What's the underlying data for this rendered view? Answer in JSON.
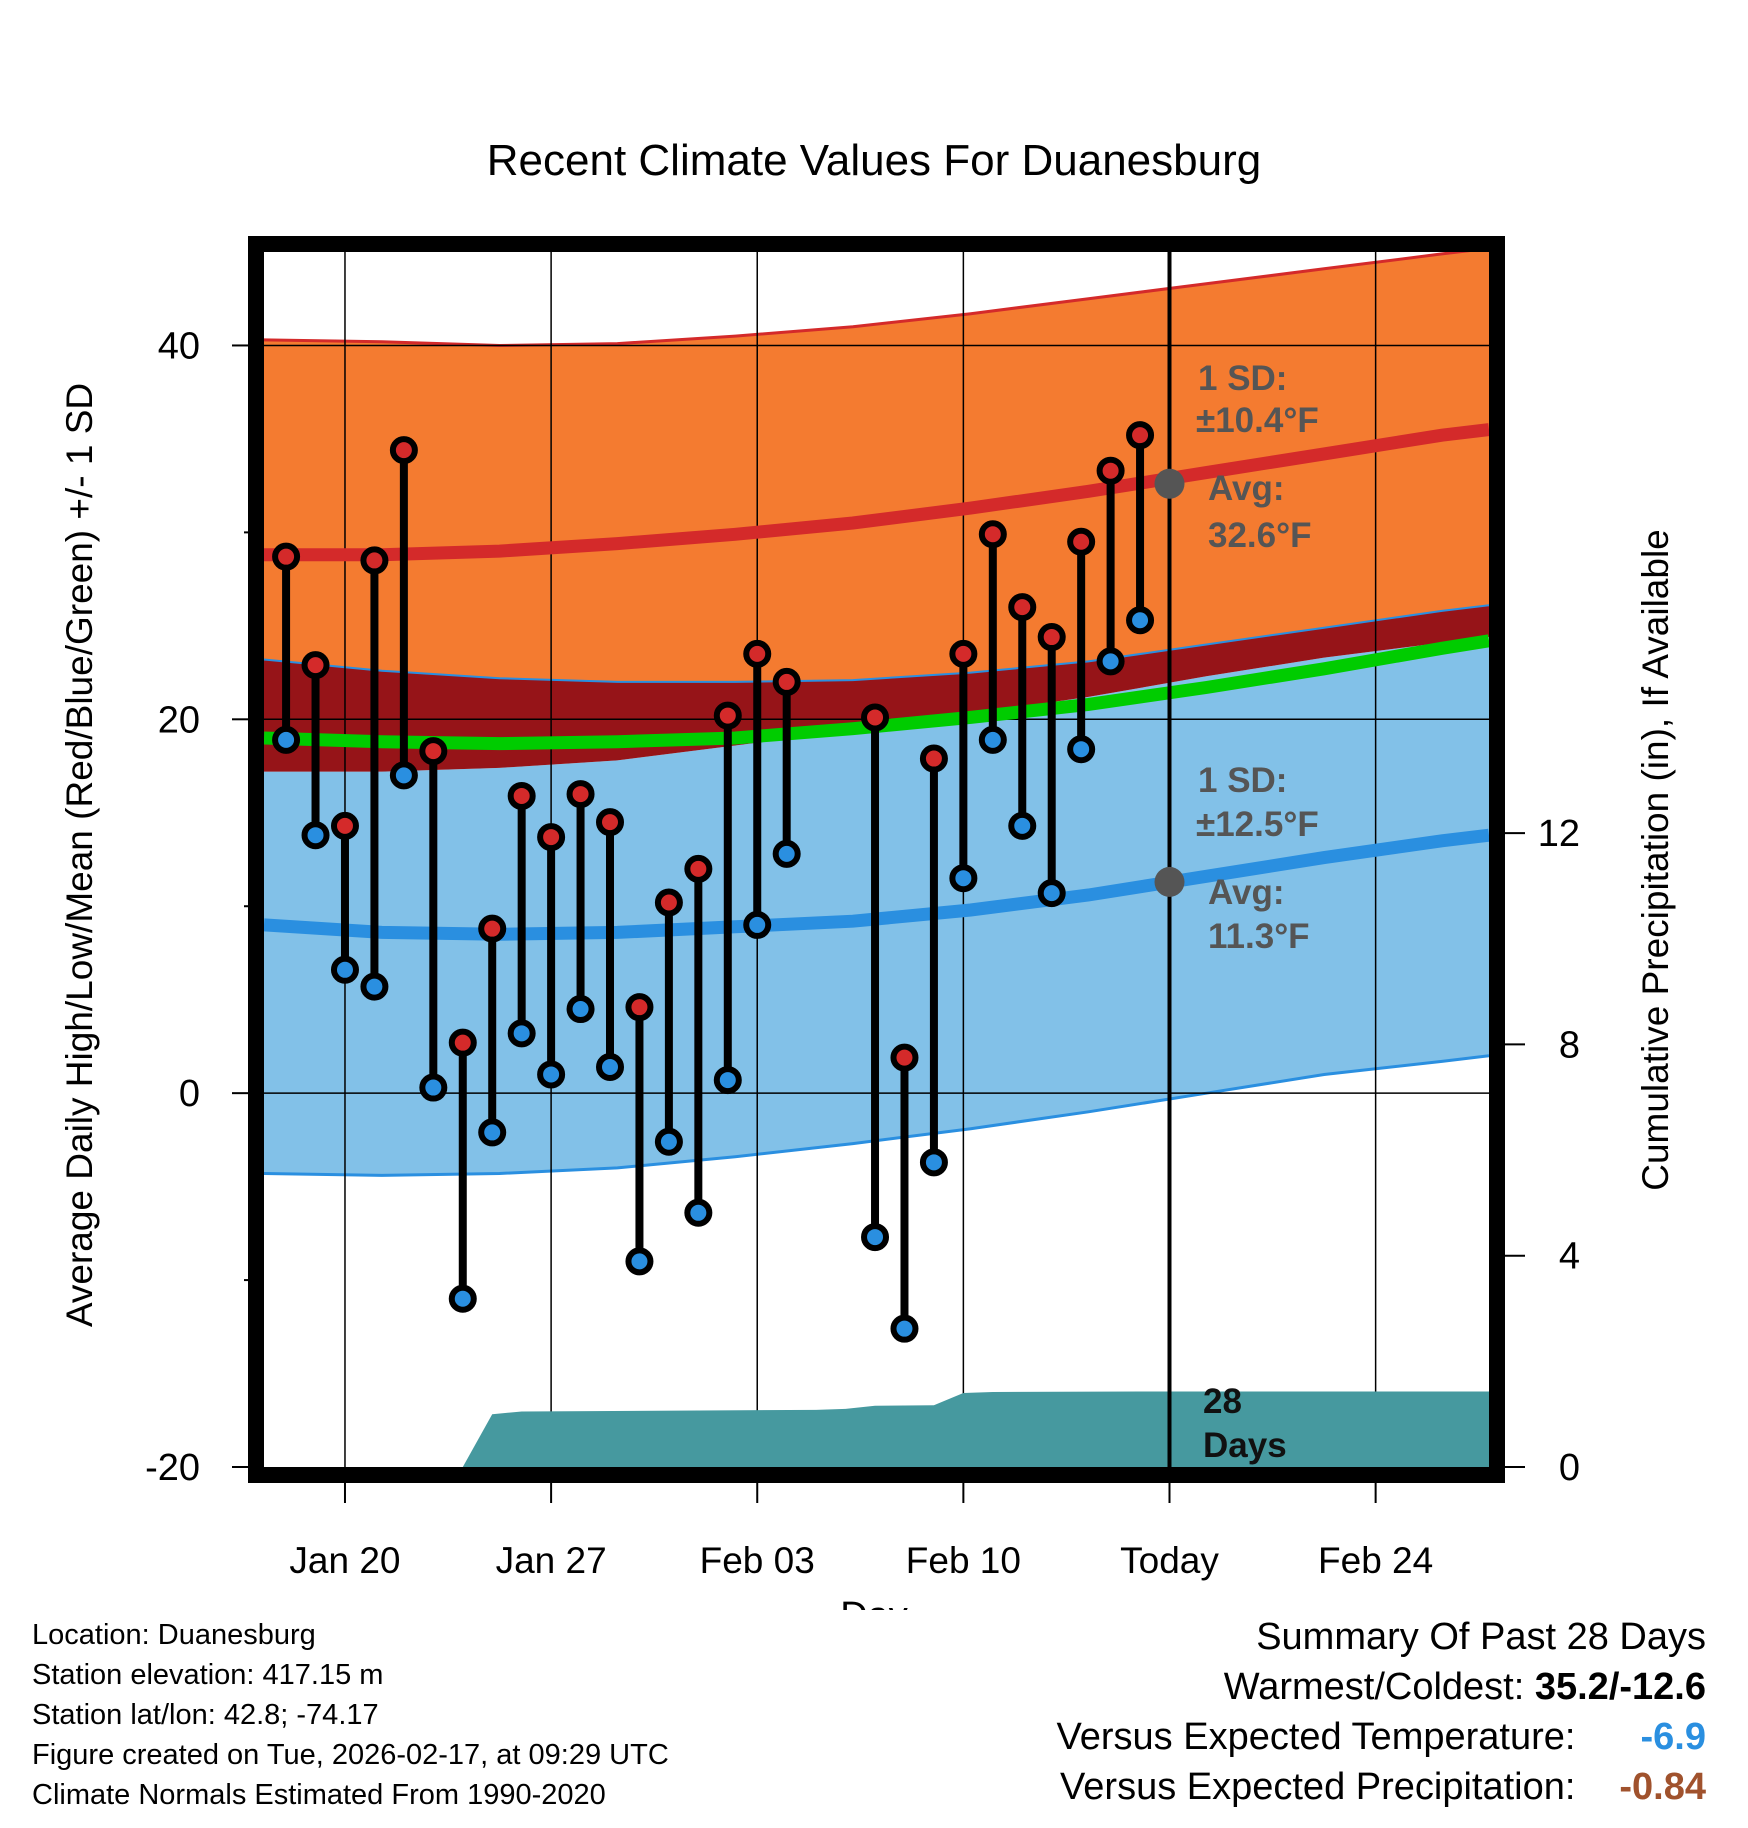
{
  "chart_data": {
    "type": "line",
    "title": "Recent Climate Values For Duanesburg",
    "xlabel": "Day",
    "ylabel": "Average Daily High/Low/Mean (Red/Blue/Green) +/- 1 SD",
    "y2label": "Cumulative Precipitation (in), If Available",
    "ylim": [
      -20,
      45
    ],
    "y2lim": [
      0,
      23
    ],
    "yticks": [
      -20,
      0,
      20,
      40
    ],
    "y2ticks": [
      0,
      4,
      8,
      12
    ],
    "xlim": [
      0,
      41.6
    ],
    "xticks": [
      {
        "x": 2.75,
        "label": "Jan 20"
      },
      {
        "x": 9.75,
        "label": "Jan 27"
      },
      {
        "x": 16.75,
        "label": "Feb 03"
      },
      {
        "x": 23.75,
        "label": "Feb 10"
      },
      {
        "x": 30.75,
        "label": "Today"
      },
      {
        "x": 37.75,
        "label": "Feb 24"
      }
    ],
    "grid": true,
    "normals": {
      "x": [
        0,
        4,
        8,
        12,
        16,
        20,
        24,
        28,
        32,
        36,
        40,
        41.6
      ],
      "high_avg": [
        28.8,
        28.8,
        29.0,
        29.4,
        29.9,
        30.5,
        31.3,
        32.2,
        33.2,
        34.2,
        35.2,
        35.5
      ],
      "high_upper": [
        40.3,
        40.2,
        40.0,
        40.1,
        40.5,
        41.0,
        41.7,
        42.5,
        43.3,
        44.1,
        44.9,
        45.2
      ],
      "high_lower": [
        23.2,
        22.6,
        22.2,
        22.0,
        22.0,
        22.1,
        22.5,
        23.1,
        24.0,
        24.9,
        25.8,
        26.1
      ],
      "mean_avg": [
        19.0,
        18.8,
        18.7,
        18.8,
        19.0,
        19.5,
        20.1,
        20.8,
        21.7,
        22.7,
        23.8,
        24.2
      ],
      "low_avg": [
        9.0,
        8.6,
        8.5,
        8.6,
        8.9,
        9.2,
        9.8,
        10.6,
        11.6,
        12.6,
        13.5,
        13.8
      ],
      "low_upper": [
        17.2,
        17.2,
        17.4,
        17.8,
        18.6,
        19.4,
        20.3,
        21.2,
        22.3,
        23.3,
        24.1,
        24.4
      ],
      "low_lower": [
        -4.3,
        -4.4,
        -4.3,
        -4.0,
        -3.4,
        -2.7,
        -1.9,
        -1.0,
        0.0,
        1.0,
        1.7,
        2.0
      ]
    },
    "daily": {
      "x": [
        0.75,
        1.75,
        2.75,
        3.75,
        4.75,
        5.75,
        6.75,
        7.75,
        8.75,
        9.75,
        10.75,
        11.75,
        12.75,
        13.75,
        14.75,
        15.75,
        16.75,
        17.75,
        20.75,
        21.75,
        22.75,
        23.75,
        24.75,
        25.75,
        26.75,
        27.75,
        28.75,
        29.75
      ],
      "high": [
        28.7,
        22.9,
        14.3,
        28.5,
        34.4,
        18.3,
        2.7,
        8.8,
        15.9,
        13.7,
        16.0,
        14.5,
        4.6,
        10.2,
        12.0,
        20.2,
        23.5,
        22.0,
        20.1,
        1.9,
        17.9,
        23.5,
        29.9,
        26.0,
        24.4,
        29.5,
        33.3,
        35.2
      ],
      "low": [
        18.9,
        13.8,
        6.6,
        5.7,
        17.0,
        0.3,
        -11.0,
        -2.1,
        3.2,
        1.0,
        4.5,
        1.4,
        -9.0,
        -2.6,
        -6.4,
        0.7,
        9.0,
        12.8,
        -7.7,
        -12.6,
        -3.7,
        11.5,
        18.9,
        14.3,
        10.7,
        18.4,
        23.1,
        25.3
      ]
    },
    "precip": {
      "x": [
        6.75,
        7.75,
        8.75,
        14.75,
        18.75,
        19.75,
        20.75,
        22.75,
        23.75,
        24.75,
        29.75,
        30.75,
        41.6
      ],
      "values": [
        0,
        1.0,
        1.05,
        1.07,
        1.08,
        1.1,
        1.16,
        1.17,
        1.4,
        1.42,
        1.43,
        1.43,
        1.43
      ]
    },
    "today_annotations": {
      "high_sd": "1 SD:",
      "high_sd_val": "±10.4°F",
      "high_avg_label": "Avg:",
      "high_avg_val": "32.6°F",
      "high_avg": 32.6,
      "low_sd": "1 SD:",
      "low_sd_val": "±12.5°F",
      "low_avg_label": "Avg:",
      "low_avg_val": "11.3°F",
      "low_avg": 11.3,
      "days_line1": "28",
      "days_line2": "Days"
    },
    "colors": {
      "high_band": "#f47b30",
      "high_line": "#d42a2a",
      "low_band": "#82c1e8",
      "low_line": "#2a8fe0",
      "mean_line": "#00cc00",
      "overlap": "#961418",
      "precip": "#46999f",
      "high_dot": "#d42a2a",
      "low_dot": "#2a8fe0",
      "annotation": "#555555",
      "today_dot": "#555555"
    }
  },
  "info": {
    "location": "Location: Duanesburg",
    "elevation": "Station elevation: 417.15 m",
    "latlon": "Station lat/lon: 42.8; -74.17",
    "created": "Figure created on Tue, 2026-02-17, at 09:29 UTC",
    "normals": "Climate Normals Estimated From 1990-2020"
  },
  "summary": {
    "title": "Summary Of Past 28 Days",
    "warm_cold_label": "Warmest/Coldest:",
    "warm_cold_value": "35.2/-12.6",
    "temp_label": "Versus Expected Temperature:",
    "temp_value": "-6.9",
    "precip_label": "Versus Expected Precipitation:",
    "precip_value": "-0.84"
  }
}
